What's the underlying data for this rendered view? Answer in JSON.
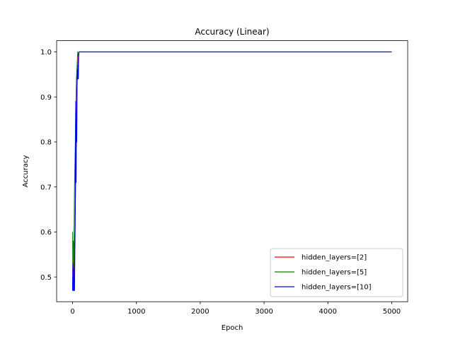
{
  "chart_data": {
    "type": "line",
    "title": "Accuracy (Linear)",
    "xlabel": "Epoch",
    "ylabel": "Accuracy",
    "xlim": [
      -250,
      5250
    ],
    "ylim": [
      0.445,
      1.025
    ],
    "xticks": [
      0,
      1000,
      2000,
      3000,
      4000,
      5000
    ],
    "yticks": [
      0.5,
      0.6,
      0.7,
      0.8,
      0.9,
      1.0
    ],
    "xtick_labels": [
      "0",
      "1000",
      "2000",
      "3000",
      "4000",
      "5000"
    ],
    "ytick_labels": [
      "0.5",
      "0.6",
      "0.7",
      "0.8",
      "0.9",
      "1.0"
    ],
    "grid": false,
    "legend_position": "lower-right",
    "series": [
      {
        "name": "hidden_layers=[2]",
        "color": "#ff0000",
        "points": [
          [
            0,
            0.47
          ],
          [
            10,
            0.52
          ],
          [
            20,
            0.47
          ],
          [
            30,
            0.55
          ],
          [
            40,
            0.62
          ],
          [
            50,
            0.73
          ],
          [
            60,
            0.86
          ],
          [
            70,
            0.93
          ],
          [
            80,
            0.97
          ],
          [
            90,
            0.99
          ],
          [
            100,
            1.0
          ],
          [
            5000,
            1.0
          ]
        ]
      },
      {
        "name": "hidden_layers=[5]",
        "color": "#008000",
        "points": [
          [
            0,
            0.6
          ],
          [
            5,
            0.47
          ],
          [
            10,
            0.58
          ],
          [
            15,
            0.47
          ],
          [
            20,
            0.55
          ],
          [
            30,
            0.7
          ],
          [
            40,
            0.78
          ],
          [
            50,
            0.88
          ],
          [
            60,
            0.94
          ],
          [
            70,
            0.97
          ],
          [
            80,
            1.0
          ],
          [
            90,
            0.99
          ],
          [
            100,
            1.0
          ],
          [
            5000,
            1.0
          ]
        ]
      },
      {
        "name": "hidden_layers=[10]",
        "color": "#0000ff",
        "points": [
          [
            0,
            0.47
          ],
          [
            5,
            0.53
          ],
          [
            10,
            0.47
          ],
          [
            15,
            0.52
          ],
          [
            20,
            0.47
          ],
          [
            25,
            0.5
          ],
          [
            30,
            0.47
          ],
          [
            35,
            0.55
          ],
          [
            40,
            0.61
          ],
          [
            45,
            0.73
          ],
          [
            50,
            0.89
          ],
          [
            55,
            0.71
          ],
          [
            60,
            0.84
          ],
          [
            65,
            0.8
          ],
          [
            70,
            0.92
          ],
          [
            75,
            0.96
          ],
          [
            80,
            0.94
          ],
          [
            85,
            0.97
          ],
          [
            90,
            0.94
          ],
          [
            95,
            0.99
          ],
          [
            100,
            1.0
          ],
          [
            5000,
            1.0
          ]
        ]
      }
    ]
  }
}
